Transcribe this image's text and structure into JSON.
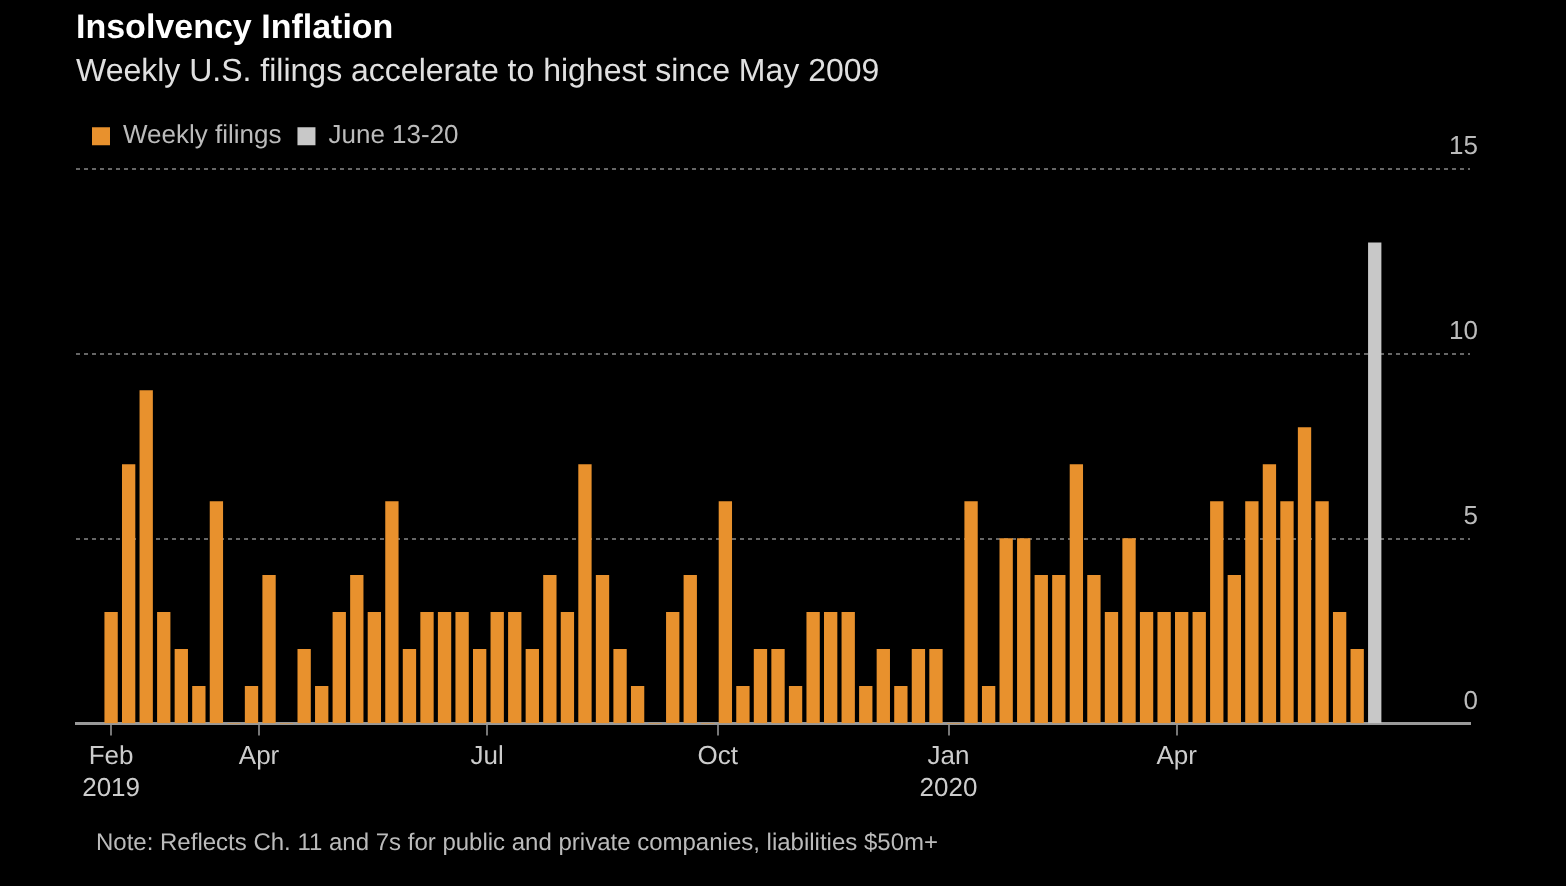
{
  "chart_data": {
    "type": "bar",
    "title": "Insolvency Inflation",
    "subtitle": "Weekly U.S. filings accelerate to highest since May 2009",
    "series": [
      {
        "name": "Weekly filings",
        "color": "#e8912d",
        "x": [
          "2019-02-01",
          "2019-02-08",
          "2019-02-15",
          "2019-02-22",
          "2019-03-01",
          "2019-03-08",
          "2019-03-15",
          "2019-03-22",
          "2019-03-29",
          "2019-04-05",
          "2019-04-12",
          "2019-04-19",
          "2019-04-26",
          "2019-05-03",
          "2019-05-10",
          "2019-05-17",
          "2019-05-24",
          "2019-05-31",
          "2019-06-07",
          "2019-06-14",
          "2019-06-21",
          "2019-06-28",
          "2019-07-05",
          "2019-07-12",
          "2019-07-19",
          "2019-07-26",
          "2019-08-02",
          "2019-08-09",
          "2019-08-16",
          "2019-08-23",
          "2019-08-30",
          "2019-09-06",
          "2019-09-13",
          "2019-09-20",
          "2019-09-27",
          "2019-10-04",
          "2019-10-11",
          "2019-10-18",
          "2019-10-25",
          "2019-11-01",
          "2019-11-08",
          "2019-11-15",
          "2019-11-22",
          "2019-11-29",
          "2019-12-06",
          "2019-12-13",
          "2019-12-20",
          "2019-12-27",
          "2020-01-03",
          "2020-01-10",
          "2020-01-17",
          "2020-01-24",
          "2020-01-31",
          "2020-02-07",
          "2020-02-14",
          "2020-02-21",
          "2020-02-28",
          "2020-03-06",
          "2020-03-13",
          "2020-03-20",
          "2020-03-27",
          "2020-04-03",
          "2020-04-10",
          "2020-04-17",
          "2020-04-24",
          "2020-05-01",
          "2020-05-08",
          "2020-05-15",
          "2020-05-22",
          "2020-05-29",
          "2020-06-05",
          "2020-06-12"
        ],
        "values": [
          3,
          7,
          9,
          3,
          2,
          1,
          6,
          0,
          1,
          4,
          0,
          2,
          1,
          3,
          4,
          3,
          6,
          2,
          3,
          3,
          3,
          2,
          3,
          3,
          2,
          4,
          3,
          7,
          4,
          2,
          1,
          0,
          3,
          4,
          0,
          6,
          1,
          2,
          2,
          1,
          3,
          3,
          3,
          1,
          2,
          1,
          2,
          2,
          0,
          6,
          1,
          5,
          5,
          4,
          4,
          7,
          4,
          3,
          5,
          3,
          3,
          3,
          3,
          6,
          4,
          6,
          7,
          6,
          8,
          6,
          3,
          2
        ]
      },
      {
        "name": "June 13-20",
        "color": "#c8c8c8",
        "x": [
          "2020-06-19"
        ],
        "values": [
          13
        ]
      }
    ],
    "xlim": [
      "2019-01-18",
      "2020-07-27"
    ],
    "xticks": [
      {
        "value": "2019-02-01",
        "label": "Feb 2019"
      },
      {
        "value": "2019-04-01",
        "label": "Apr"
      },
      {
        "value": "2019-07-01",
        "label": "Jul"
      },
      {
        "value": "2019-10-01",
        "label": "Oct"
      },
      {
        "value": "2020-01-01",
        "label": "Jan 2020"
      },
      {
        "value": "2020-04-01",
        "label": "Apr"
      }
    ],
    "ylim": [
      0,
      15
    ],
    "yticks": [
      0,
      5,
      10,
      15
    ],
    "grid": "y",
    "legend": "top left",
    "annotations": [
      "Note: Reflects Ch. 11 and 7s for public and private companies, liabilities $50m+"
    ]
  }
}
